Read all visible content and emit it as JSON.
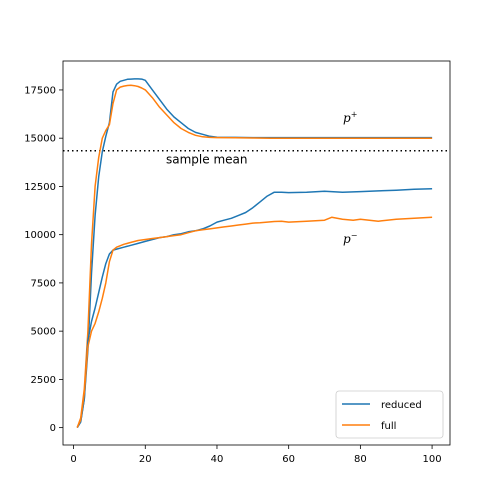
{
  "chart_data": {
    "type": "line",
    "xlim": [
      -2.95,
      105.0
    ],
    "ylim": [
      -900,
      19000
    ],
    "x_ticks": [
      0,
      20,
      40,
      60,
      80,
      100
    ],
    "y_ticks": [
      0,
      2500,
      5000,
      7500,
      10000,
      12500,
      15000,
      17500
    ],
    "grid": false,
    "legend_position": "lower-right",
    "series": [
      {
        "name": "reduced",
        "color": "#1f77b4",
        "group": "p+",
        "x": [
          1,
          2,
          3,
          4,
          5,
          6,
          7,
          8,
          9,
          10,
          11,
          12,
          13,
          14,
          15,
          16,
          17,
          18,
          19,
          20,
          22,
          24,
          26,
          28,
          30,
          32,
          34,
          36,
          38,
          40,
          45,
          50,
          55,
          60,
          65,
          70,
          75,
          80,
          85,
          90,
          95,
          100
        ],
        "y": [
          0,
          300,
          1500,
          4000,
          8000,
          11000,
          13000,
          14300,
          15100,
          15800,
          17400,
          17800,
          17950,
          18000,
          18050,
          18060,
          18070,
          18070,
          18060,
          18000,
          17500,
          17000,
          16500,
          16100,
          15800,
          15500,
          15300,
          15200,
          15100,
          15050,
          15040,
          15030,
          15030,
          15030,
          15030,
          15030,
          15030,
          15030,
          15030,
          15030,
          15030,
          15030
        ]
      },
      {
        "name": "full",
        "color": "#ff7f0e",
        "group": "p+",
        "x": [
          1,
          2,
          3,
          4,
          5,
          6,
          7,
          8,
          9,
          10,
          11,
          12,
          13,
          14,
          15,
          16,
          17,
          18,
          19,
          20,
          22,
          24,
          26,
          28,
          30,
          32,
          34,
          36,
          38,
          40,
          45,
          50,
          55,
          60,
          65,
          70,
          75,
          80,
          85,
          90,
          95,
          100
        ],
        "y": [
          0,
          500,
          2000,
          5000,
          9500,
          12500,
          14000,
          15000,
          15400,
          15700,
          16800,
          17500,
          17650,
          17700,
          17730,
          17740,
          17720,
          17680,
          17600,
          17500,
          17100,
          16600,
          16200,
          15800,
          15500,
          15300,
          15150,
          15070,
          15040,
          15030,
          15020,
          15010,
          15000,
          15000,
          15000,
          15000,
          15000,
          15000,
          15000,
          15000,
          15000,
          15000
        ]
      },
      {
        "name": "reduced",
        "color": "#1f77b4",
        "group": "p-",
        "x": [
          1,
          2,
          3,
          4,
          5,
          6,
          7,
          8,
          9,
          10,
          11,
          12,
          14,
          16,
          18,
          20,
          22,
          24,
          26,
          28,
          30,
          32,
          34,
          36,
          38,
          40,
          42,
          44,
          46,
          48,
          50,
          52,
          54,
          56,
          58,
          60,
          65,
          70,
          75,
          80,
          85,
          90,
          95,
          100
        ],
        "y": [
          0,
          300,
          1500,
          4500,
          5500,
          6200,
          7000,
          7800,
          8500,
          9000,
          9200,
          9250,
          9350,
          9450,
          9550,
          9650,
          9750,
          9850,
          9900,
          10000,
          10050,
          10150,
          10200,
          10300,
          10450,
          10650,
          10750,
          10850,
          11000,
          11150,
          11400,
          11700,
          12000,
          12200,
          12200,
          12180,
          12200,
          12250,
          12200,
          12230,
          12270,
          12300,
          12350,
          12380
        ]
      },
      {
        "name": "full",
        "color": "#ff7f0e",
        "group": "p-",
        "x": [
          1,
          2,
          3,
          4,
          5,
          6,
          7,
          8,
          9,
          10,
          11,
          12,
          14,
          16,
          18,
          20,
          22,
          24,
          26,
          28,
          30,
          32,
          34,
          36,
          38,
          40,
          42,
          44,
          46,
          48,
          50,
          52,
          54,
          56,
          58,
          60,
          65,
          70,
          72,
          75,
          78,
          80,
          85,
          90,
          95,
          100
        ],
        "y": [
          0,
          400,
          1800,
          4200,
          5000,
          5400,
          6000,
          6700,
          7500,
          8600,
          9200,
          9350,
          9500,
          9600,
          9700,
          9750,
          9800,
          9850,
          9900,
          9950,
          10000,
          10100,
          10200,
          10250,
          10300,
          10350,
          10400,
          10450,
          10500,
          10550,
          10600,
          10620,
          10650,
          10680,
          10700,
          10650,
          10700,
          10750,
          10900,
          10800,
          10750,
          10800,
          10700,
          10800,
          10850,
          10900
        ]
      }
    ],
    "annotations": {
      "p_plus_base": "p",
      "p_plus_sup": "+",
      "p_minus_base": "p",
      "p_minus_sup": "−",
      "sample_mean_label": "sample mean"
    },
    "sample_mean_value": 14350,
    "legend": [
      "reduced",
      "full"
    ]
  }
}
